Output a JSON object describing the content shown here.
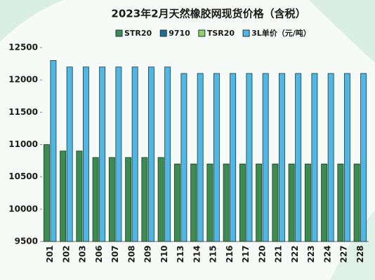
{
  "chart_data": {
    "type": "bar",
    "title": "2023年2月天然橡胶网现货价格（含税）",
    "categories": [
      "201",
      "202",
      "203",
      "206",
      "207",
      "208",
      "209",
      "210",
      "213",
      "214",
      "215",
      "216",
      "217",
      "220",
      "221",
      "222",
      "223",
      "224",
      "227",
      "228"
    ],
    "series": [
      {
        "name": "STR20",
        "color": "#3c8c52",
        "values": [
          11000,
          10900,
          10900,
          10800,
          10800,
          10800,
          10800,
          10800,
          10700,
          10700,
          10700,
          10700,
          10700,
          10700,
          10700,
          10700,
          10700,
          10700,
          10700,
          10700
        ]
      },
      {
        "name": "9710",
        "color": "#1f6f8b",
        "values": [
          null,
          null,
          null,
          null,
          null,
          null,
          null,
          null,
          null,
          null,
          null,
          null,
          null,
          null,
          null,
          null,
          null,
          null,
          null,
          null
        ]
      },
      {
        "name": "TSR20",
        "color": "#8fd16a",
        "values": [
          null,
          null,
          null,
          null,
          null,
          null,
          null,
          null,
          null,
          null,
          null,
          null,
          null,
          null,
          null,
          null,
          null,
          null,
          null,
          null
        ]
      },
      {
        "name": "3L单价（元/吨）",
        "color": "#4fb6e6",
        "values": [
          12300,
          12200,
          12200,
          12200,
          12200,
          12200,
          12200,
          12200,
          12100,
          12100,
          12100,
          12100,
          12100,
          12100,
          12100,
          12100,
          12100,
          12100,
          12100,
          12100
        ]
      }
    ],
    "ylim": [
      9500,
      12500
    ],
    "yticks": [
      9500,
      10000,
      10500,
      11000,
      11500,
      12000,
      12500
    ]
  }
}
